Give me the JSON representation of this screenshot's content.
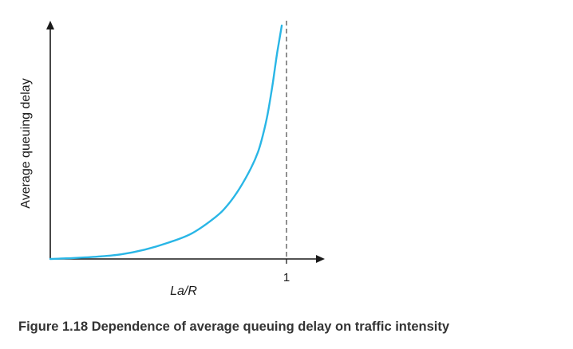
{
  "chart_data": {
    "type": "line",
    "xlabel": "La/R",
    "ylabel": "Average queuing delay",
    "caption": "Figure 1.18 Dependence of average queuing delay on traffic intensity",
    "x_ticks": [
      {
        "value": 1,
        "label": "1"
      }
    ],
    "asymptote": {
      "x": 1,
      "style": "dashed"
    },
    "xlim": [
      0,
      1.15
    ],
    "ylim": [
      0,
      1.08
    ],
    "grid": false,
    "legend": "none",
    "colors": {
      "curve": "#29b6e6",
      "axes": "#1a1a1a",
      "asymptote": "#555555",
      "caption": "#333333"
    },
    "series": [
      {
        "x": [
          0,
          0.1,
          0.2,
          0.3,
          0.4,
          0.5,
          0.6,
          0.7,
          0.75,
          0.8,
          0.85,
          0.88,
          0.9,
          0.92,
          0.94,
          0.95,
          0.96,
          0.97,
          0.98
        ],
        "y": [
          0,
          0.004,
          0.01,
          0.02,
          0.04,
          0.07,
          0.11,
          0.18,
          0.23,
          0.3,
          0.39,
          0.46,
          0.53,
          0.62,
          0.74,
          0.81,
          0.88,
          0.94,
          1.0
        ]
      }
    ]
  }
}
